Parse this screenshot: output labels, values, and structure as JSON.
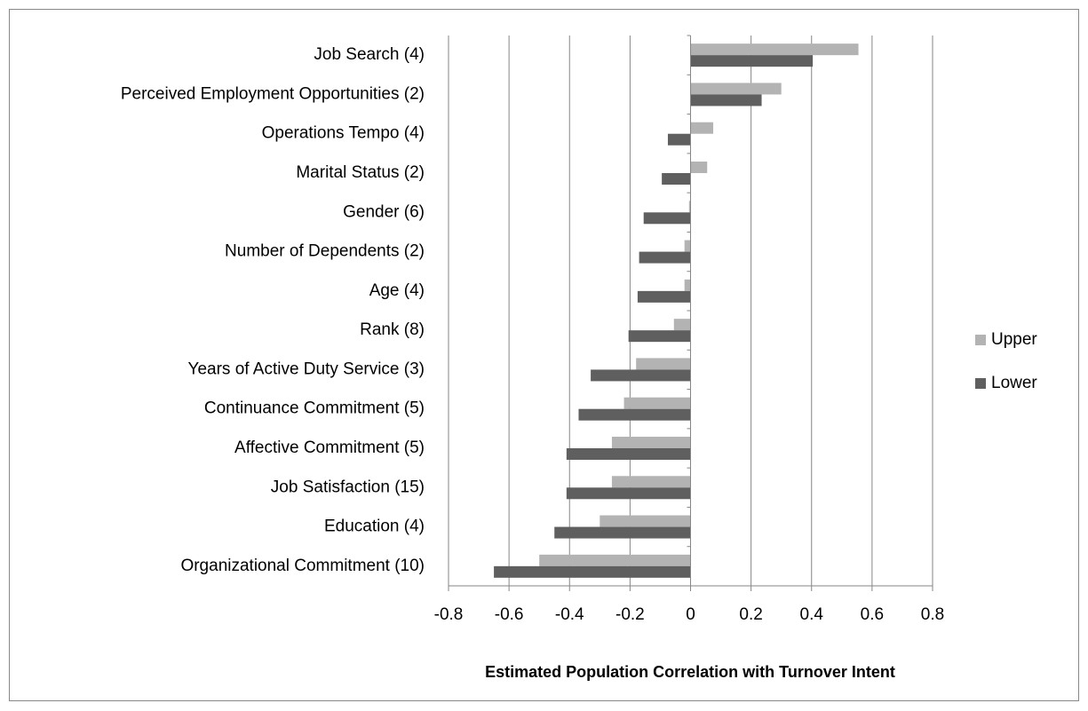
{
  "chart_data": {
    "type": "barh",
    "x_label": "Estimated Population Correlation with Turnover Intent",
    "categories": [
      "Job Search (4)",
      "Perceived Employment Opportunities (2)",
      "Operations Tempo (4)",
      "Marital Status (2)",
      "Gender (6)",
      "Number of Dependents (2)",
      "Age (4)",
      "Rank (8)",
      "Years of Active Duty Service (3)",
      "Continuance Commitment (5)",
      "Affective Commitment (5)",
      "Job Satisfaction (15)",
      "Education (4)",
      "Organizational Commitment (10)"
    ],
    "series": [
      {
        "name": "Upper",
        "color": "#b3b3b3",
        "values": [
          0.555,
          0.3,
          0.075,
          0.055,
          -0.005,
          -0.02,
          -0.02,
          -0.055,
          -0.18,
          -0.22,
          -0.26,
          -0.26,
          -0.3,
          -0.5
        ]
      },
      {
        "name": "Lower",
        "color": "#5f5f5f",
        "values": [
          0.404,
          0.235,
          -0.075,
          -0.095,
          -0.155,
          -0.17,
          -0.175,
          -0.205,
          -0.33,
          -0.37,
          -0.41,
          -0.41,
          -0.45,
          -0.65
        ]
      }
    ],
    "xlim": [
      -0.8,
      0.8
    ],
    "xticks": [
      -0.8,
      -0.6,
      -0.4,
      -0.2,
      0,
      0.2,
      0.4,
      0.6,
      0.8
    ],
    "grid": true,
    "legend": "right"
  }
}
